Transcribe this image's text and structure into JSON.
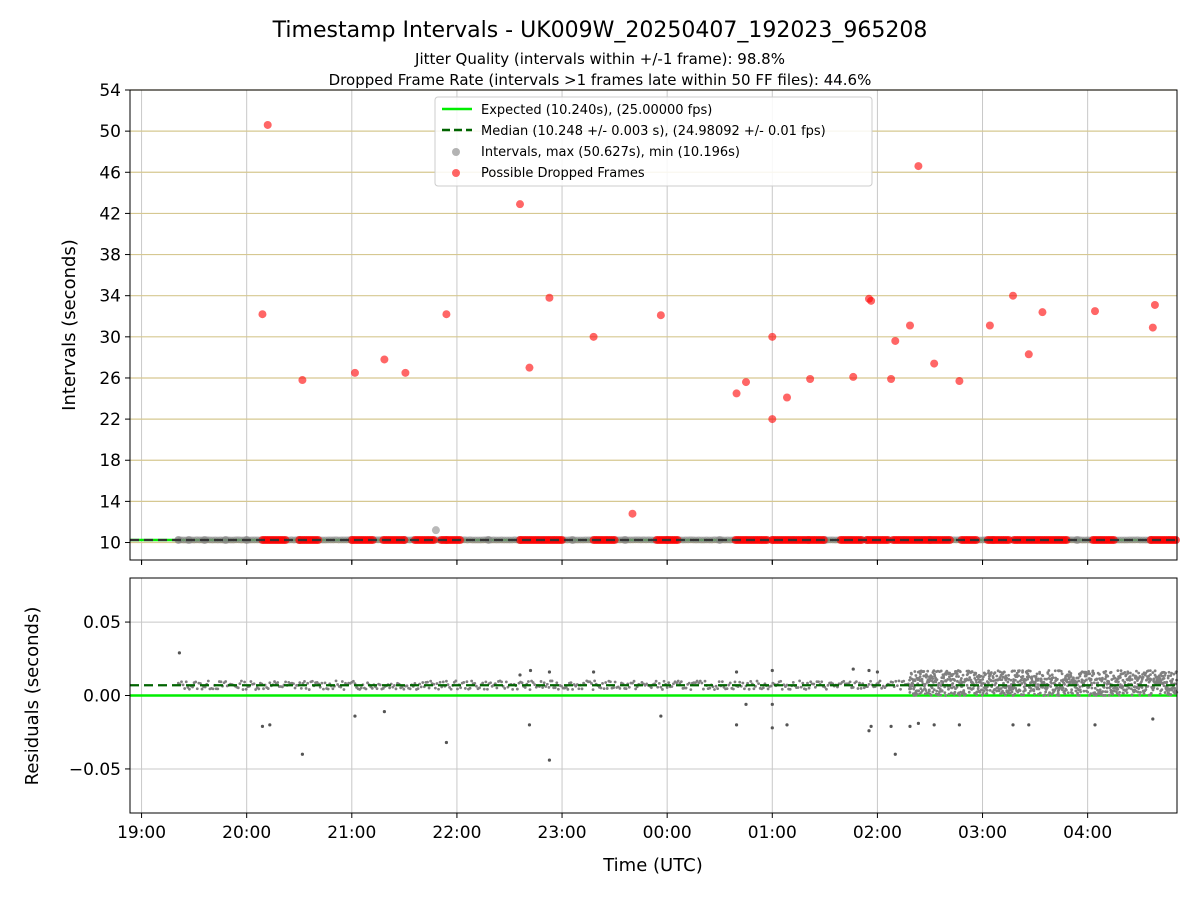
{
  "chart_data": {
    "type": "scatter",
    "title": "Timestamp Intervals - UK009W_20250407_192023_965208",
    "subtitle_lines": [
      "Jitter Quality (intervals within +/-1 frame): 98.8%",
      "Dropped Frame Rate (intervals >1 frames late within 50 FF files): 44.6%"
    ],
    "xlabel": "Time (UTC)",
    "x_ticks": [
      "19:00",
      "20:00",
      "21:00",
      "22:00",
      "23:00",
      "00:00",
      "01:00",
      "02:00",
      "03:00",
      "04:00"
    ],
    "x_range_hours": [
      -0.11,
      9.85
    ],
    "x_origin": "19:00",
    "colors": {
      "expected": "#00ee00",
      "median": "#006400",
      "intervals": "#808080",
      "dropped": "#ff0000",
      "hgrid_top": "#d6c891",
      "grid": "#c8c8c8"
    },
    "top_panel": {
      "ylabel": "Intervals (seconds)",
      "ylim": [
        8.3,
        54
      ],
      "y_ticks": [
        "10",
        "14",
        "18",
        "22",
        "26",
        "30",
        "34",
        "38",
        "42",
        "46",
        "50",
        "54"
      ],
      "grid": true,
      "legend_position": "upper-center",
      "expected_value": 10.24,
      "median_value": 10.248,
      "series": [
        {
          "name": "Expected (10.240s), (25.00000 fps)",
          "kind": "line"
        },
        {
          "name": "Median (10.248 +/- 0.003 s), (24.98092 +/- 0.01 fps)",
          "kind": "dashed-line"
        },
        {
          "name": "Intervals, max (50.627s), min (10.196s)",
          "kind": "points",
          "points": [
            [
              0.35,
              10.25
            ],
            [
              0.45,
              10.24
            ],
            [
              0.6,
              10.24
            ],
            [
              0.8,
              10.24
            ],
            [
              1.0,
              10.24
            ],
            [
              1.5,
              10.24
            ],
            [
              2.0,
              10.24
            ],
            [
              2.5,
              10.24
            ],
            [
              2.9,
              10.24
            ],
            [
              3.3,
              10.25
            ],
            [
              3.6,
              10.24
            ],
            [
              4.1,
              10.24
            ],
            [
              4.6,
              10.24
            ],
            [
              5.0,
              10.24
            ],
            [
              5.5,
              10.25
            ],
            [
              6.0,
              10.24
            ],
            [
              6.5,
              10.24
            ],
            [
              6.9,
              10.24
            ],
            [
              7.5,
              10.24
            ],
            [
              8.1,
              10.24
            ],
            [
              8.9,
              10.24
            ],
            [
              9.6,
              10.24
            ],
            [
              2.8,
              11.2
            ]
          ]
        },
        {
          "name": "Possible Dropped Frames",
          "kind": "points",
          "points": [
            [
              1.2,
              50.6
            ],
            [
              1.15,
              32.2
            ],
            [
              1.53,
              25.8
            ],
            [
              2.03,
              26.5
            ],
            [
              2.31,
              27.8
            ],
            [
              2.51,
              26.5
            ],
            [
              2.9,
              32.2
            ],
            [
              3.6,
              42.9
            ],
            [
              3.69,
              27.0
            ],
            [
              3.88,
              33.8
            ],
            [
              4.3,
              30.0
            ],
            [
              4.67,
              12.8
            ],
            [
              4.94,
              32.1
            ],
            [
              5.66,
              24.5
            ],
            [
              5.75,
              25.6
            ],
            [
              6.0,
              30.0
            ],
            [
              6.0,
              22.0
            ],
            [
              6.14,
              24.1
            ],
            [
              6.36,
              25.9
            ],
            [
              6.77,
              26.1
            ],
            [
              6.92,
              33.7
            ],
            [
              6.94,
              33.5
            ],
            [
              7.13,
              25.9
            ],
            [
              7.17,
              29.6
            ],
            [
              7.31,
              31.1
            ],
            [
              7.39,
              46.6
            ],
            [
              7.54,
              27.4
            ],
            [
              7.78,
              25.7
            ],
            [
              8.07,
              31.1
            ],
            [
              8.29,
              34.0
            ],
            [
              8.44,
              28.3
            ],
            [
              8.57,
              32.4
            ],
            [
              9.07,
              32.5
            ],
            [
              9.62,
              30.9
            ],
            [
              9.64,
              33.1
            ]
          ],
          "baseline_runs": [
            [
              1.15,
              1.38
            ],
            [
              1.5,
              1.7
            ],
            [
              2.0,
              2.2
            ],
            [
              2.3,
              2.5
            ],
            [
              2.6,
              2.8
            ],
            [
              2.85,
              3.05
            ],
            [
              3.6,
              4.0
            ],
            [
              4.3,
              4.5
            ],
            [
              4.9,
              5.1
            ],
            [
              5.65,
              5.95
            ],
            [
              6.0,
              6.35
            ],
            [
              6.35,
              6.5
            ],
            [
              6.65,
              6.85
            ],
            [
              6.9,
              7.1
            ],
            [
              7.15,
              7.7
            ],
            [
              7.8,
              7.95
            ],
            [
              8.05,
              8.25
            ],
            [
              8.3,
              8.8
            ],
            [
              9.05,
              9.25
            ],
            [
              9.6,
              9.85
            ]
          ],
          "baseline_value": 10.24
        }
      ]
    },
    "bottom_panel": {
      "ylabel": "Residuals (seconds)",
      "ylim": [
        -0.08,
        0.08
      ],
      "y_ticks": [
        "−0.05",
        "0.00",
        "0.05"
      ],
      "y_tick_values": [
        -0.05,
        0.0,
        0.05
      ],
      "grid": true,
      "expected_value": 0.0,
      "median_value": 0.007,
      "outliers": [
        [
          0.36,
          0.029
        ],
        [
          1.15,
          -0.021
        ],
        [
          1.22,
          -0.02
        ],
        [
          1.53,
          -0.04
        ],
        [
          2.03,
          -0.014
        ],
        [
          2.31,
          -0.011
        ],
        [
          2.9,
          -0.032
        ],
        [
          3.69,
          -0.02
        ],
        [
          3.88,
          -0.044
        ],
        [
          4.94,
          -0.014
        ],
        [
          5.66,
          -0.02
        ],
        [
          5.75,
          -0.006
        ],
        [
          6.0,
          -0.022
        ],
        [
          6.0,
          -0.006
        ],
        [
          6.14,
          -0.02
        ],
        [
          6.92,
          -0.024
        ],
        [
          6.94,
          -0.021
        ],
        [
          7.13,
          -0.021
        ],
        [
          7.17,
          -0.04
        ],
        [
          7.31,
          -0.021
        ],
        [
          7.39,
          -0.019
        ],
        [
          7.54,
          -0.02
        ],
        [
          7.78,
          -0.02
        ],
        [
          8.29,
          -0.02
        ],
        [
          8.44,
          -0.02
        ],
        [
          9.07,
          -0.02
        ],
        [
          9.62,
          -0.016
        ],
        [
          3.6,
          0.014
        ],
        [
          3.7,
          0.017
        ],
        [
          3.88,
          0.016
        ],
        [
          4.3,
          0.016
        ],
        [
          5.66,
          0.016
        ],
        [
          6.0,
          0.017
        ],
        [
          6.77,
          0.018
        ],
        [
          6.92,
          0.017
        ],
        [
          7.0,
          0.016
        ]
      ],
      "dense_band": {
        "x_start": 7.3,
        "x_end": 9.85,
        "y_min": 0.0,
        "y_max": 0.017
      },
      "sparse_band": {
        "x_start": 0.35,
        "x_end": 7.3,
        "y_min": 0.004,
        "y_max": 0.01
      }
    }
  }
}
